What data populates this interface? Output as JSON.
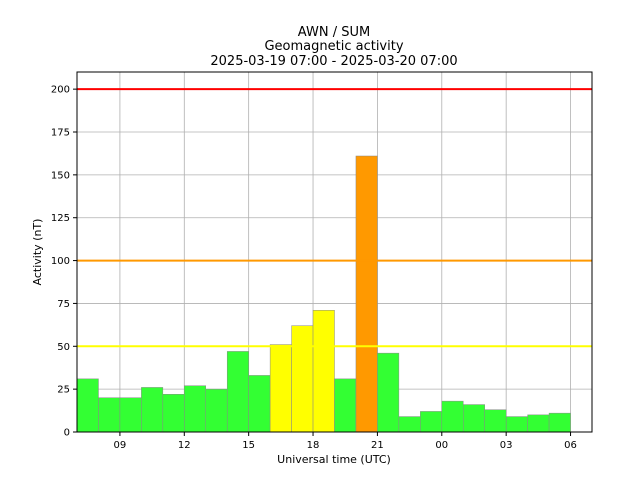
{
  "chart_data": {
    "type": "bar",
    "title_lines": [
      "AWN / SUM",
      "Geomagnetic activity",
      "2025-03-19 07:00 - 2025-03-20 07:00"
    ],
    "xlabel": "Universal time (UTC)",
    "ylabel": "Activity (nT)",
    "x_tick_labels": [
      "09",
      "12",
      "15",
      "18",
      "21",
      "00",
      "03",
      "06"
    ],
    "x_tick_hours": [
      9,
      12,
      15,
      18,
      21,
      24,
      27,
      30
    ],
    "xlim_hours": [
      7,
      31
    ],
    "ylim": [
      0,
      210
    ],
    "y_ticks": [
      0,
      25,
      50,
      75,
      100,
      125,
      150,
      175,
      200
    ],
    "grid": true,
    "thresholds": [
      {
        "value": 50,
        "color": "#ffff00"
      },
      {
        "value": 100,
        "color": "#ff9900"
      },
      {
        "value": 200,
        "color": "#ff0000"
      }
    ],
    "bar_colors": {
      "low": "#33ff33",
      "moderate": "#ffff00",
      "high": "#ff9900"
    },
    "hours": [
      7,
      8,
      9,
      10,
      11,
      12,
      13,
      14,
      15,
      16,
      17,
      18,
      19,
      20,
      21,
      22,
      23,
      24,
      25,
      26,
      27,
      28,
      29
    ],
    "values": [
      31,
      20,
      20,
      26,
      22,
      27,
      25,
      47,
      33,
      51,
      62,
      71,
      31,
      161,
      46,
      9,
      12,
      18,
      16,
      13,
      9,
      10,
      11
    ]
  }
}
